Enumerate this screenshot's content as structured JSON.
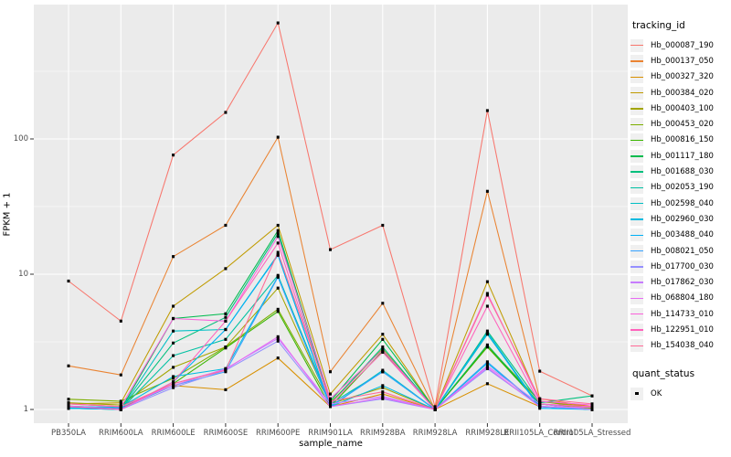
{
  "chart_data": {
    "type": "line",
    "title": "",
    "xlabel": "sample_name",
    "ylabel": "FPKM + 1",
    "y_scale": "log10",
    "y_tick_labels": [
      "1",
      "10",
      "100"
    ],
    "y_tick_values": [
      1,
      10,
      100
    ],
    "y_minor_values": [
      3.162,
      31.62,
      316.2
    ],
    "ylim": [
      0.82,
      915
    ],
    "legend_position": "right",
    "grid": "on",
    "categories": [
      "PB350LA",
      "RRIM600LA",
      "RRIM600LE",
      "RRIM600SE",
      "RRIM600PE",
      "RRIM901LA",
      "RRIM928BA",
      "RRIM928LA",
      "RRIM928LE",
      "RRII105LA_Control",
      "RRII105LA_Stressed"
    ],
    "series": [
      {
        "name": "Hb_000087_190",
        "color": "#F8766D",
        "values": [
          8.9,
          4.5,
          76,
          157,
          720,
          15.2,
          23,
          1.05,
          162,
          1.92,
          1.26
        ]
      },
      {
        "name": "Hb_000137_050",
        "color": "#EA8331",
        "values": [
          2.1,
          1.8,
          13.5,
          23,
          103,
          1.9,
          6.1,
          1.0,
          41,
          1.2,
          1.05
        ]
      },
      {
        "name": "Hb_000327_320",
        "color": "#D89000",
        "values": [
          1.05,
          1.02,
          1.5,
          1.4,
          2.4,
          1.05,
          1.3,
          1.0,
          1.55,
          1.05,
          1.0
        ]
      },
      {
        "name": "Hb_000384_020",
        "color": "#C09B00",
        "values": [
          1.1,
          1.12,
          5.8,
          11,
          23,
          1.3,
          3.6,
          1.0,
          8.8,
          1.15,
          1.05
        ]
      },
      {
        "name": "Hb_000403_100",
        "color": "#A3A500",
        "values": [
          1.12,
          1.08,
          2.05,
          2.9,
          7.9,
          1.1,
          1.45,
          1.0,
          2.9,
          1.1,
          1.02
        ]
      },
      {
        "name": "Hb_000453_020",
        "color": "#7CAE00",
        "values": [
          1.19,
          1.15,
          1.7,
          2.9,
          5.5,
          1.12,
          2.8,
          1.0,
          2.95,
          1.15,
          1.02
        ]
      },
      {
        "name": "Hb_000816_150",
        "color": "#39B600",
        "values": [
          1.06,
          1.02,
          1.55,
          2.85,
          5.3,
          1.05,
          2.7,
          1.0,
          2.9,
          1.1,
          1.0
        ]
      },
      {
        "name": "Hb_001117_180",
        "color": "#00BB4E",
        "values": [
          1.02,
          1.0,
          4.7,
          5.1,
          21,
          1.15,
          3.3,
          1.0,
          3.0,
          1.1,
          1.0
        ]
      },
      {
        "name": "Hb_001688_030",
        "color": "#00BF7D",
        "values": [
          1.03,
          1.0,
          3.1,
          4.8,
          20,
          1.1,
          2.9,
          1.0,
          3.8,
          1.12,
          1.26
        ]
      },
      {
        "name": "Hb_002053_190",
        "color": "#00C1A3",
        "values": [
          1.05,
          1.0,
          2.5,
          3.3,
          9.8,
          1.1,
          1.9,
          1.0,
          3.6,
          1.05,
          1.0
        ]
      },
      {
        "name": "Hb_002598_040",
        "color": "#00BFC4",
        "values": [
          1.02,
          1.0,
          3.8,
          3.9,
          14,
          1.05,
          1.95,
          1.0,
          3.7,
          1.05,
          1.0
        ]
      },
      {
        "name": "Hb_002960_030",
        "color": "#00BAE0",
        "values": [
          1.05,
          1.04,
          1.75,
          2.0,
          9.6,
          1.05,
          1.5,
          1.0,
          2.2,
          1.05,
          1.0
        ]
      },
      {
        "name": "Hb_003488_040",
        "color": "#00B0F6",
        "values": [
          1.02,
          1.0,
          1.6,
          3.9,
          13.8,
          1.05,
          1.9,
          1.0,
          3.65,
          1.02,
          1.0
        ]
      },
      {
        "name": "Hb_008021_050",
        "color": "#35A2FF",
        "values": [
          1.06,
          1.02,
          1.5,
          1.9,
          9.5,
          1.06,
          1.9,
          1.0,
          2.25,
          1.05,
          1.0
        ]
      },
      {
        "name": "Hb_017700_030",
        "color": "#9590FF",
        "values": [
          1.05,
          1.0,
          1.45,
          1.95,
          3.2,
          1.05,
          1.2,
          1.0,
          2.0,
          1.06,
          1.0
        ]
      },
      {
        "name": "Hb_017862_030",
        "color": "#C77CFF",
        "values": [
          1.1,
          1.05,
          1.5,
          2.0,
          3.35,
          1.1,
          1.25,
          1.0,
          2.1,
          1.1,
          1.0
        ]
      },
      {
        "name": "Hb_068804_180",
        "color": "#E76BF3",
        "values": [
          1.06,
          1.0,
          1.55,
          1.98,
          3.45,
          1.05,
          1.22,
          1.0,
          2.05,
          1.05,
          1.04
        ]
      },
      {
        "name": "Hb_114733_010",
        "color": "#FA62DB",
        "values": [
          1.1,
          1.05,
          4.7,
          4.5,
          19,
          1.2,
          2.75,
          1.0,
          7.2,
          1.15,
          1.08
        ]
      },
      {
        "name": "Hb_122951_010",
        "color": "#FF62BC",
        "values": [
          1.05,
          1.0,
          1.6,
          4.5,
          17,
          1.1,
          2.65,
          1.0,
          5.8,
          1.1,
          1.05
        ]
      },
      {
        "name": "Hb_154038_040",
        "color": "#FF6A98",
        "values": [
          1.1,
          1.05,
          1.55,
          1.95,
          14.5,
          1.15,
          1.35,
          1.0,
          7.0,
          1.2,
          1.1
        ]
      }
    ]
  },
  "legend": {
    "tracking_title": "tracking_id",
    "quant_title": "quant_status",
    "quant_items": [
      {
        "label": "OK",
        "marker": "black-square"
      }
    ]
  },
  "colors": {
    "panel_bg": "#EBEBEB",
    "grid": "#FFFFFF",
    "point": "#000000",
    "tick_text": "#4D4D4D",
    "tick_mark": "#333333",
    "legend_key_bg": "#F0F0F0"
  }
}
